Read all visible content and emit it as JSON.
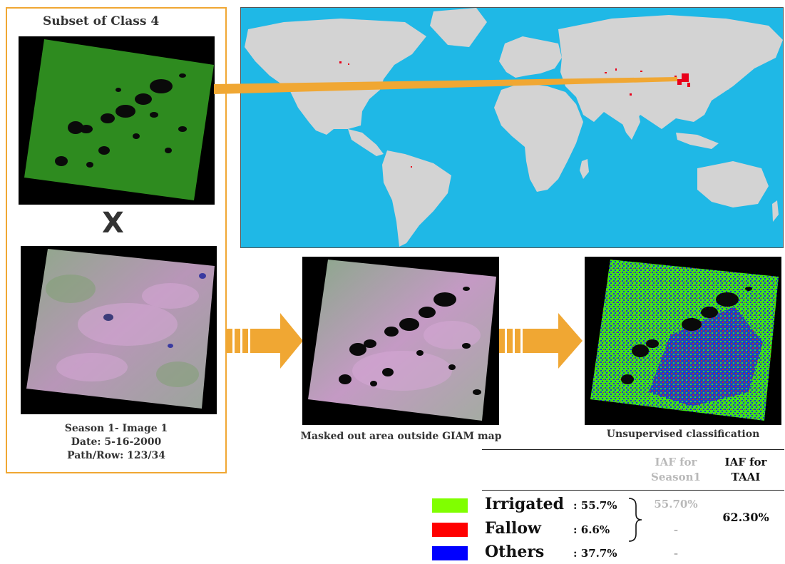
{
  "subset_title": "Subset of Class 4",
  "multiply_symbol": "X",
  "season_caption": [
    "Season 1- Image 1",
    "Date: 5-16-2000",
    "Path/Row: 123/34"
  ],
  "masked_caption": "Masked out area outside GIAM map",
  "classification_caption": "Unsupervised classification",
  "table": {
    "col1_header": [
      "IAF for",
      "Season1"
    ],
    "col2_header": [
      "IAF for",
      "TAAI"
    ],
    "rows": [
      {
        "label": "Irrigated",
        "pct": ": 55.7%",
        "season1": "55.70%",
        "color": "#80ff00"
      },
      {
        "label": "Fallow",
        "pct": ": 6.6%",
        "season1": "-",
        "color": "#ff0000"
      },
      {
        "label": "Others",
        "pct": ": 37.7%",
        "season1": "-",
        "color": "#0000ff"
      }
    ],
    "taai_value": "62.30%"
  },
  "colors": {
    "panel_border": "#f0a733",
    "arrow": "#f0a733",
    "ocean": "#1fb8e6",
    "land": "#d3d3d3",
    "hotspot": "#e8001a",
    "class4_green": "#2e8b1f"
  }
}
